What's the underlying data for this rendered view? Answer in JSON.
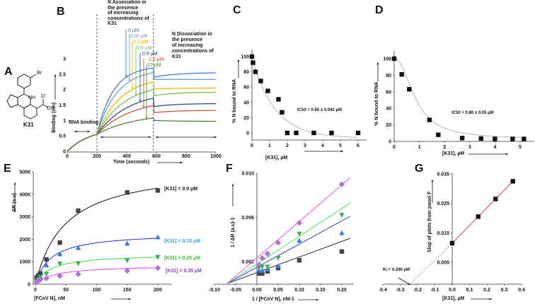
{
  "panel_labels": {
    "A": "A",
    "B": "B",
    "C": "C",
    "D": "D",
    "E": "E",
    "F": "F",
    "G": "G"
  },
  "compound": {
    "name": "K31",
    "br": "Br",
    "nh": "NH",
    "oh": "OH",
    "o": "O"
  },
  "colors": {
    "black": "#111111",
    "blue": "#2f5fe0",
    "lightblue": "#3a9af0",
    "green": "#40d040",
    "magenta": "#e040e0",
    "purple": "#a060e0",
    "red": "#e03020"
  },
  "chart_data": [
    {
      "id": "B",
      "type": "line",
      "title": "",
      "xlabel": "Time (seconds)",
      "ylabel": "Binding (nm)",
      "xlim": [
        0,
        1000
      ],
      "ylim": [
        0,
        3
      ],
      "xticks": [
        0,
        200,
        400,
        600,
        800,
        1000
      ],
      "yticks": [
        0,
        0.5,
        1,
        1.5,
        2,
        2.5,
        3
      ],
      "annotations": {
        "assoc": "N Association in\nthe presence\nof increasing\nconcentrations of\nK31",
        "dissoc": "N Dissociation in\nthe presence\nof increasing\nconcentrations of\nK31",
        "rna": "RNA binding"
      },
      "phase_boundaries": [
        200,
        580
      ],
      "series": [
        {
          "name": "0 µM",
          "color": "#3b6fd6",
          "rna_end": 0.55,
          "assoc_end": 2.7,
          "dissoc_start": 2.4,
          "dissoc_end": 2.55
        },
        {
          "name": "0.06 µM",
          "color": "#5aa0e6",
          "rna_end": 0.55,
          "assoc_end": 2.55,
          "dissoc_start": 2.33,
          "dissoc_end": 2.33
        },
        {
          "name": "0.2 µM",
          "color": "#f0b400",
          "rna_end": 0.55,
          "assoc_end": 2.25,
          "dissoc_start": 2.02,
          "dissoc_end": 2.05
        },
        {
          "name": "0.5 µM",
          "color": "#6cbf3a",
          "rna_end": 0.55,
          "assoc_end": 2.0,
          "dissoc_start": 1.8,
          "dissoc_end": 1.92
        },
        {
          "name": "0.9 µM",
          "color": "#1f3f8f",
          "rna_end": 0.55,
          "assoc_end": 1.72,
          "dissoc_start": 1.45,
          "dissoc_end": 1.55
        },
        {
          "name": "1.5 µM",
          "color": "#c0502a",
          "rna_end": 0.55,
          "assoc_end": 1.48,
          "dissoc_start": 1.25,
          "dissoc_end": 1.33
        },
        {
          "name": "17 µM",
          "color": "#3f7f2a",
          "rna_end": 0.55,
          "assoc_end": 1.08,
          "dissoc_start": 1.0,
          "dissoc_end": 0.97
        }
      ]
    },
    {
      "id": "C",
      "type": "scatter",
      "xlabel": "[K31], µM",
      "ylabel": "% N bound to RNA",
      "xlim": [
        0,
        6
      ],
      "ylim": [
        -9,
        109
      ],
      "xticks": [
        0,
        1,
        2,
        3,
        4,
        5,
        6
      ],
      "yticks": [
        0,
        20,
        40,
        60,
        80,
        100
      ],
      "annotation": "IC50 = 0.85 ± 0.042 µM",
      "ic50_sub": "50",
      "x": [
        0,
        0.06,
        0.2,
        0.5,
        0.9,
        1.5,
        1.7,
        2,
        2.5,
        3.5,
        4.5,
        6
      ],
      "y": [
        100,
        92,
        80,
        68,
        55,
        44,
        27,
        0,
        0,
        0,
        0,
        0
      ],
      "fit": {
        "type": "exp",
        "a": 105,
        "tau": 1.3,
        "c": -7
      }
    },
    {
      "id": "D",
      "type": "scatter",
      "xlabel": "[K31], µM",
      "ylabel": "% N bound to RNA",
      "xlim": [
        0,
        5.4
      ],
      "ylim": [
        0,
        110
      ],
      "xticks": [
        0,
        1,
        2,
        3,
        4,
        5
      ],
      "yticks": [
        0,
        20,
        40,
        60,
        80,
        100
      ],
      "annotation": "IC50 = 0.86 ± 0.05 µM",
      "x": [
        0,
        0.3,
        0.6,
        1.4,
        1.75,
        2.7,
        3.45,
        4,
        4.7,
        5.15
      ],
      "y": [
        100,
        81,
        63,
        26,
        8,
        4,
        3.5,
        3,
        3,
        3
      ],
      "fit": {
        "type": "hill",
        "bottom": 3,
        "top": 100,
        "ic50": 0.86,
        "n": 2.2
      }
    },
    {
      "id": "E",
      "type": "scatter",
      "xlabel": "[FCoV N], nM",
      "ylabel": "ΔR (a.u)",
      "xlim": [
        0,
        230
      ],
      "ylim": [
        0,
        5000
      ],
      "xticks": [
        0,
        50,
        100,
        150,
        200
      ],
      "yticks": [
        0,
        1000,
        2000,
        3000,
        4000,
        5000
      ],
      "x": [
        2,
        5,
        8,
        18,
        40,
        70,
        150,
        200
      ],
      "series": [
        {
          "name": "[K31] = 0.0  µM",
          "marker": "square",
          "color": "#444444",
          "line": "#111111",
          "labelColor": "#111111",
          "y": [
            300,
            400,
            480,
            1100,
            1850,
            3270,
            4080,
            4170
          ],
          "fit": {
            "vmax": 5300,
            "k": 48
          }
        },
        {
          "name": "[K31] = 0.15  µM",
          "marker": "tri-up",
          "color": "#3a78e0",
          "line": "#2030e0",
          "labelColor": "#3aa0f0",
          "y": [
            150,
            250,
            350,
            850,
            1350,
            1620,
            1820,
            2100
          ],
          "fit": {
            "vmax": 2300,
            "k": 25
          }
        },
        {
          "name": "[K31] = 0.25  µM",
          "marker": "tri-down",
          "color": "#40b050",
          "line": "#40e040",
          "labelColor": "#40c040",
          "y": [
            100,
            200,
            300,
            450,
            900,
            920,
            1050,
            1200
          ],
          "fit": {
            "vmax": 1350,
            "k": 25
          }
        },
        {
          "name": "[K31] = 0.35  µM",
          "marker": "diamond",
          "color": "#b070e0",
          "line": "#f040f0",
          "labelColor": "#9040d0",
          "y": [
            100,
            150,
            200,
            260,
            370,
            450,
            600,
            720
          ],
          "fit": {
            "vmax": 850,
            "k": 32
          }
        }
      ]
    },
    {
      "id": "F",
      "type": "scatter",
      "xlabel": "1 / [FCoV N], nM-1",
      "ylabel": "1 / ΔR (a.u)-1",
      "xlim": [
        -0.1,
        0.22
      ],
      "ylim": [
        0,
        0.01
      ],
      "xticks": [
        -0.1,
        -0.05,
        0,
        0.05,
        0.1,
        0.15,
        0.2
      ],
      "xticklabels": [
        "-0.10",
        "-0.05",
        "0.00",
        "0.05",
        "0.10",
        "0.15",
        "0.20"
      ],
      "yticks": [
        0.002,
        0.006,
        0.01
      ],
      "yticklabels": [
        "0.002",
        "0.006",
        "0.010"
      ],
      "x": [
        0.005,
        0.0125,
        0.025,
        0.05,
        0.1,
        0.2
      ],
      "series": [
        {
          "marker": "square",
          "color": "#444444",
          "line": "#111111",
          "y": [
            0.0009,
            0.0009,
            0.0011,
            0.0014,
            0.0021,
            0.0029
          ],
          "line_end": 0.0041
        },
        {
          "marker": "tri-up",
          "color": "#3a78e0",
          "line": "#2030e0",
          "y": [
            0.0012,
            0.0012,
            0.0013,
            0.0016,
            0.0039,
            0.0046
          ],
          "line_end": 0.0061
        },
        {
          "marker": "tri-down",
          "color": "#40b050",
          "line": "#40e040",
          "y": [
            0.0014,
            0.0015,
            0.0015,
            0.0023,
            0.0045,
            0.0062
          ],
          "line_end": 0.0073
        },
        {
          "marker": "diamond",
          "color": "#b070e0",
          "line": "#f040f0",
          "y": [
            0.0017,
            0.0023,
            0.0027,
            0.0037,
            0.0055,
            0.009
          ],
          "line_end": 0.0096
        }
      ],
      "x_intercept": -0.07
    },
    {
      "id": "G",
      "type": "scatter",
      "xlabel": "[K31], µM",
      "ylabel": "Slop of plots from panel F",
      "xlim": [
        -0.4,
        0.4
      ],
      "ylim": [
        -0.0025,
        0.035
      ],
      "xticks": [
        -0.4,
        -0.3,
        -0.2,
        -0.1,
        0,
        0.1,
        0.2,
        0.3,
        0.4
      ],
      "xticklabels": [
        "-0.4",
        "-0.3",
        "-0.2",
        "-0.1",
        "0.0",
        "0.1",
        "0.2",
        "0.3",
        "0.4"
      ],
      "yticks": [
        0.005,
        0.015,
        0.025,
        0.035
      ],
      "yticklabels": [
        "0.005",
        "0.015",
        "0.025",
        "0.035"
      ],
      "x": [
        0,
        0.15,
        0.25,
        0.35
      ],
      "y": [
        0.0115,
        0.0205,
        0.0265,
        0.0325
      ],
      "annotation": "Ki = 0.246 µM",
      "ki": -0.246,
      "line_color": "#e03020"
    }
  ]
}
